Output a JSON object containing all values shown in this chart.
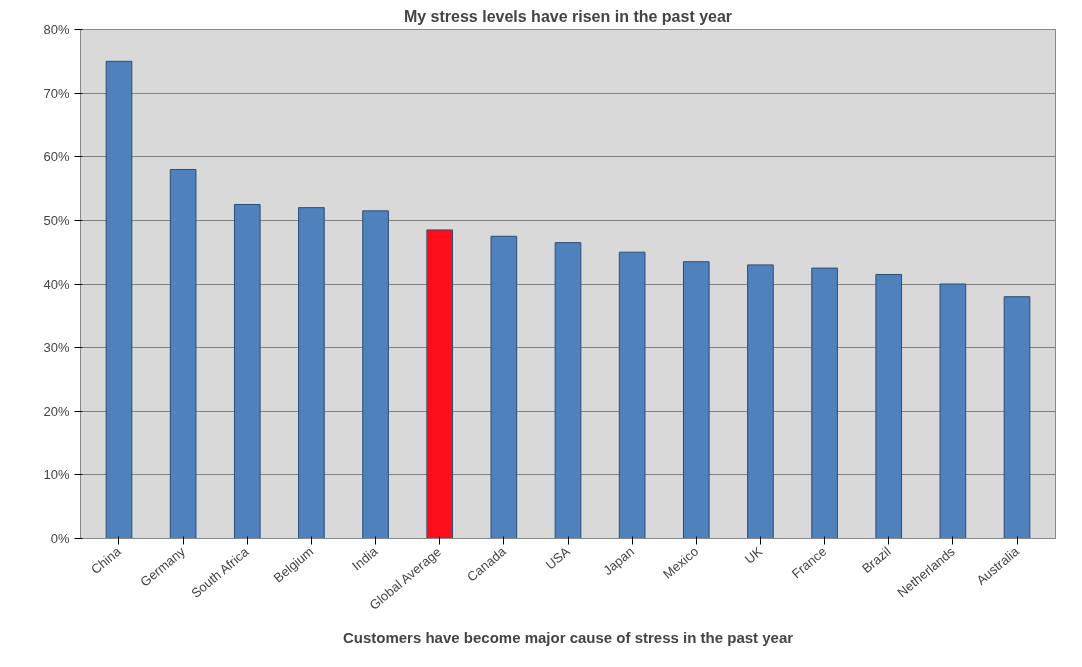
{
  "chart_data": {
    "type": "bar",
    "title": "My stress levels have risen in the past year",
    "categories": [
      "China",
      "Germany",
      "South Africa",
      "Belgium",
      "India",
      "Global Average",
      "Canada",
      "USA",
      "Japan",
      "Mexico",
      "UK",
      "France",
      "Brazil",
      "Netherlands",
      "Australia"
    ],
    "values": [
      75,
      58,
      52.5,
      52,
      51.5,
      48.5,
      47.5,
      46.5,
      45,
      43.5,
      43,
      42.5,
      41.5,
      40,
      38
    ],
    "colors": [
      "#4f81bd",
      "#4f81bd",
      "#4f81bd",
      "#4f81bd",
      "#4f81bd",
      "#ff0d1a",
      "#4f81bd",
      "#4f81bd",
      "#4f81bd",
      "#4f81bd",
      "#4f81bd",
      "#4f81bd",
      "#4f81bd",
      "#4f81bd",
      "#4f81bd"
    ],
    "ylim": [
      0,
      80
    ],
    "yticks": [
      {
        "value": 0,
        "label": "0%"
      },
      {
        "value": 10,
        "label": "10%"
      },
      {
        "value": 20,
        "label": "20%"
      },
      {
        "value": 30,
        "label": "30%"
      },
      {
        "value": 40,
        "label": "40%"
      },
      {
        "value": 50,
        "label": "50%"
      },
      {
        "value": 60,
        "label": "60%"
      },
      {
        "value": 70,
        "label": "70%"
      },
      {
        "value": 80,
        "label": "80%"
      }
    ],
    "grid": "y",
    "annotations": [
      "Customers have become major cause of stress in the past year"
    ]
  }
}
